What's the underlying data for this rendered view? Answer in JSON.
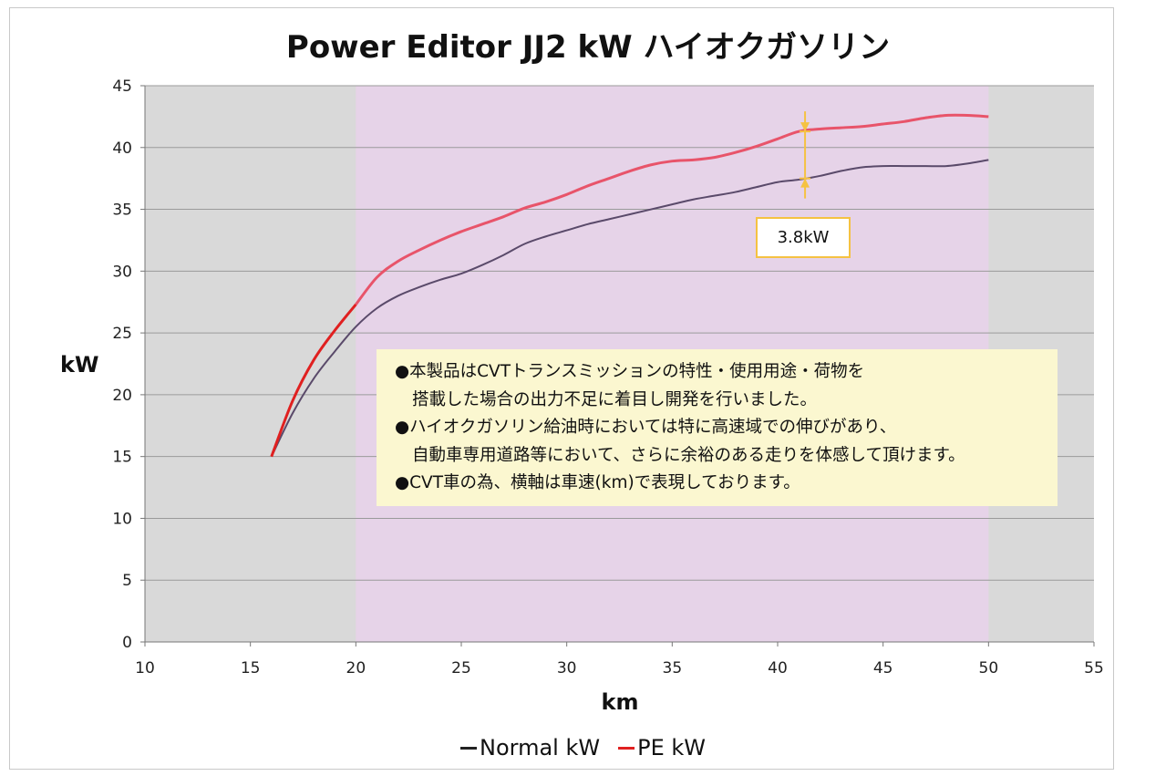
{
  "chart_data": {
    "type": "line",
    "title": "Power Editor JJ2 kW ハイオクガソリン",
    "xlabel": "km",
    "ylabel": "kW",
    "xlim": [
      10,
      55
    ],
    "ylim": [
      0,
      45
    ],
    "x_ticks": [
      "10",
      "15",
      "20",
      "25",
      "30",
      "35",
      "40",
      "45",
      "50",
      "55"
    ],
    "y_ticks": [
      "0",
      "5",
      "10",
      "15",
      "20",
      "25",
      "30",
      "35",
      "40",
      "45"
    ],
    "grid": "horizontal",
    "legend_position": "bottom",
    "highlight_range": [
      20,
      50
    ],
    "colors": {
      "normal": "#5a4a6a",
      "pe": "#e8546a",
      "pe_low": "#e02020",
      "band": "#e6d3e8",
      "outside": "#d9d9d9",
      "arrow": "#f5c242"
    },
    "series": [
      {
        "name": "Normal kW",
        "x": [
          16,
          17,
          18,
          19,
          20,
          21,
          22,
          23,
          24,
          25,
          26,
          27,
          28,
          29,
          30,
          31,
          32,
          33,
          34,
          35,
          36,
          37,
          38,
          39,
          40,
          41,
          42,
          43,
          44,
          45,
          46,
          47,
          48,
          49,
          50
        ],
        "y": [
          15,
          18.5,
          21.3,
          23.5,
          25.5,
          27.0,
          28.0,
          28.7,
          29.3,
          29.8,
          30.5,
          31.3,
          32.2,
          32.8,
          33.3,
          33.8,
          34.2,
          34.6,
          35.0,
          35.4,
          35.8,
          36.1,
          36.4,
          36.8,
          37.2,
          37.4,
          37.7,
          38.1,
          38.4,
          38.5,
          38.5,
          38.5,
          38.5,
          38.7,
          39.0
        ]
      },
      {
        "name": "PE kW",
        "x": [
          16,
          17,
          18,
          19,
          20,
          21,
          22,
          23,
          24,
          25,
          26,
          27,
          28,
          29,
          30,
          31,
          32,
          33,
          34,
          35,
          36,
          37,
          38,
          39,
          40,
          41,
          42,
          43,
          44,
          45,
          46,
          47,
          48,
          49,
          50
        ],
        "y": [
          15,
          19.5,
          22.8,
          25.2,
          27.3,
          29.5,
          30.8,
          31.7,
          32.5,
          33.2,
          33.8,
          34.4,
          35.1,
          35.6,
          36.2,
          36.9,
          37.5,
          38.1,
          38.6,
          38.9,
          39.0,
          39.2,
          39.6,
          40.1,
          40.7,
          41.3,
          41.5,
          41.6,
          41.7,
          41.9,
          42.1,
          42.4,
          42.6,
          42.6,
          42.5
        ]
      }
    ],
    "annotation": {
      "x": 41.3,
      "from": 37.5,
      "to": 41.3,
      "label": "3.8kW"
    },
    "note_lines": [
      "●本製品はCVTトランスミッションの特性・使用用途・荷物を",
      "搭載した場合の出力不足に着目し開発を行いました。",
      "●ハイオクガソリン給油時においては特に高速域での伸びがあり、",
      "自動車専用道路等において、さらに余裕のある走りを体感して頂けます。",
      "●CVT車の為、横軸は車速(km)で表現しております。"
    ]
  }
}
